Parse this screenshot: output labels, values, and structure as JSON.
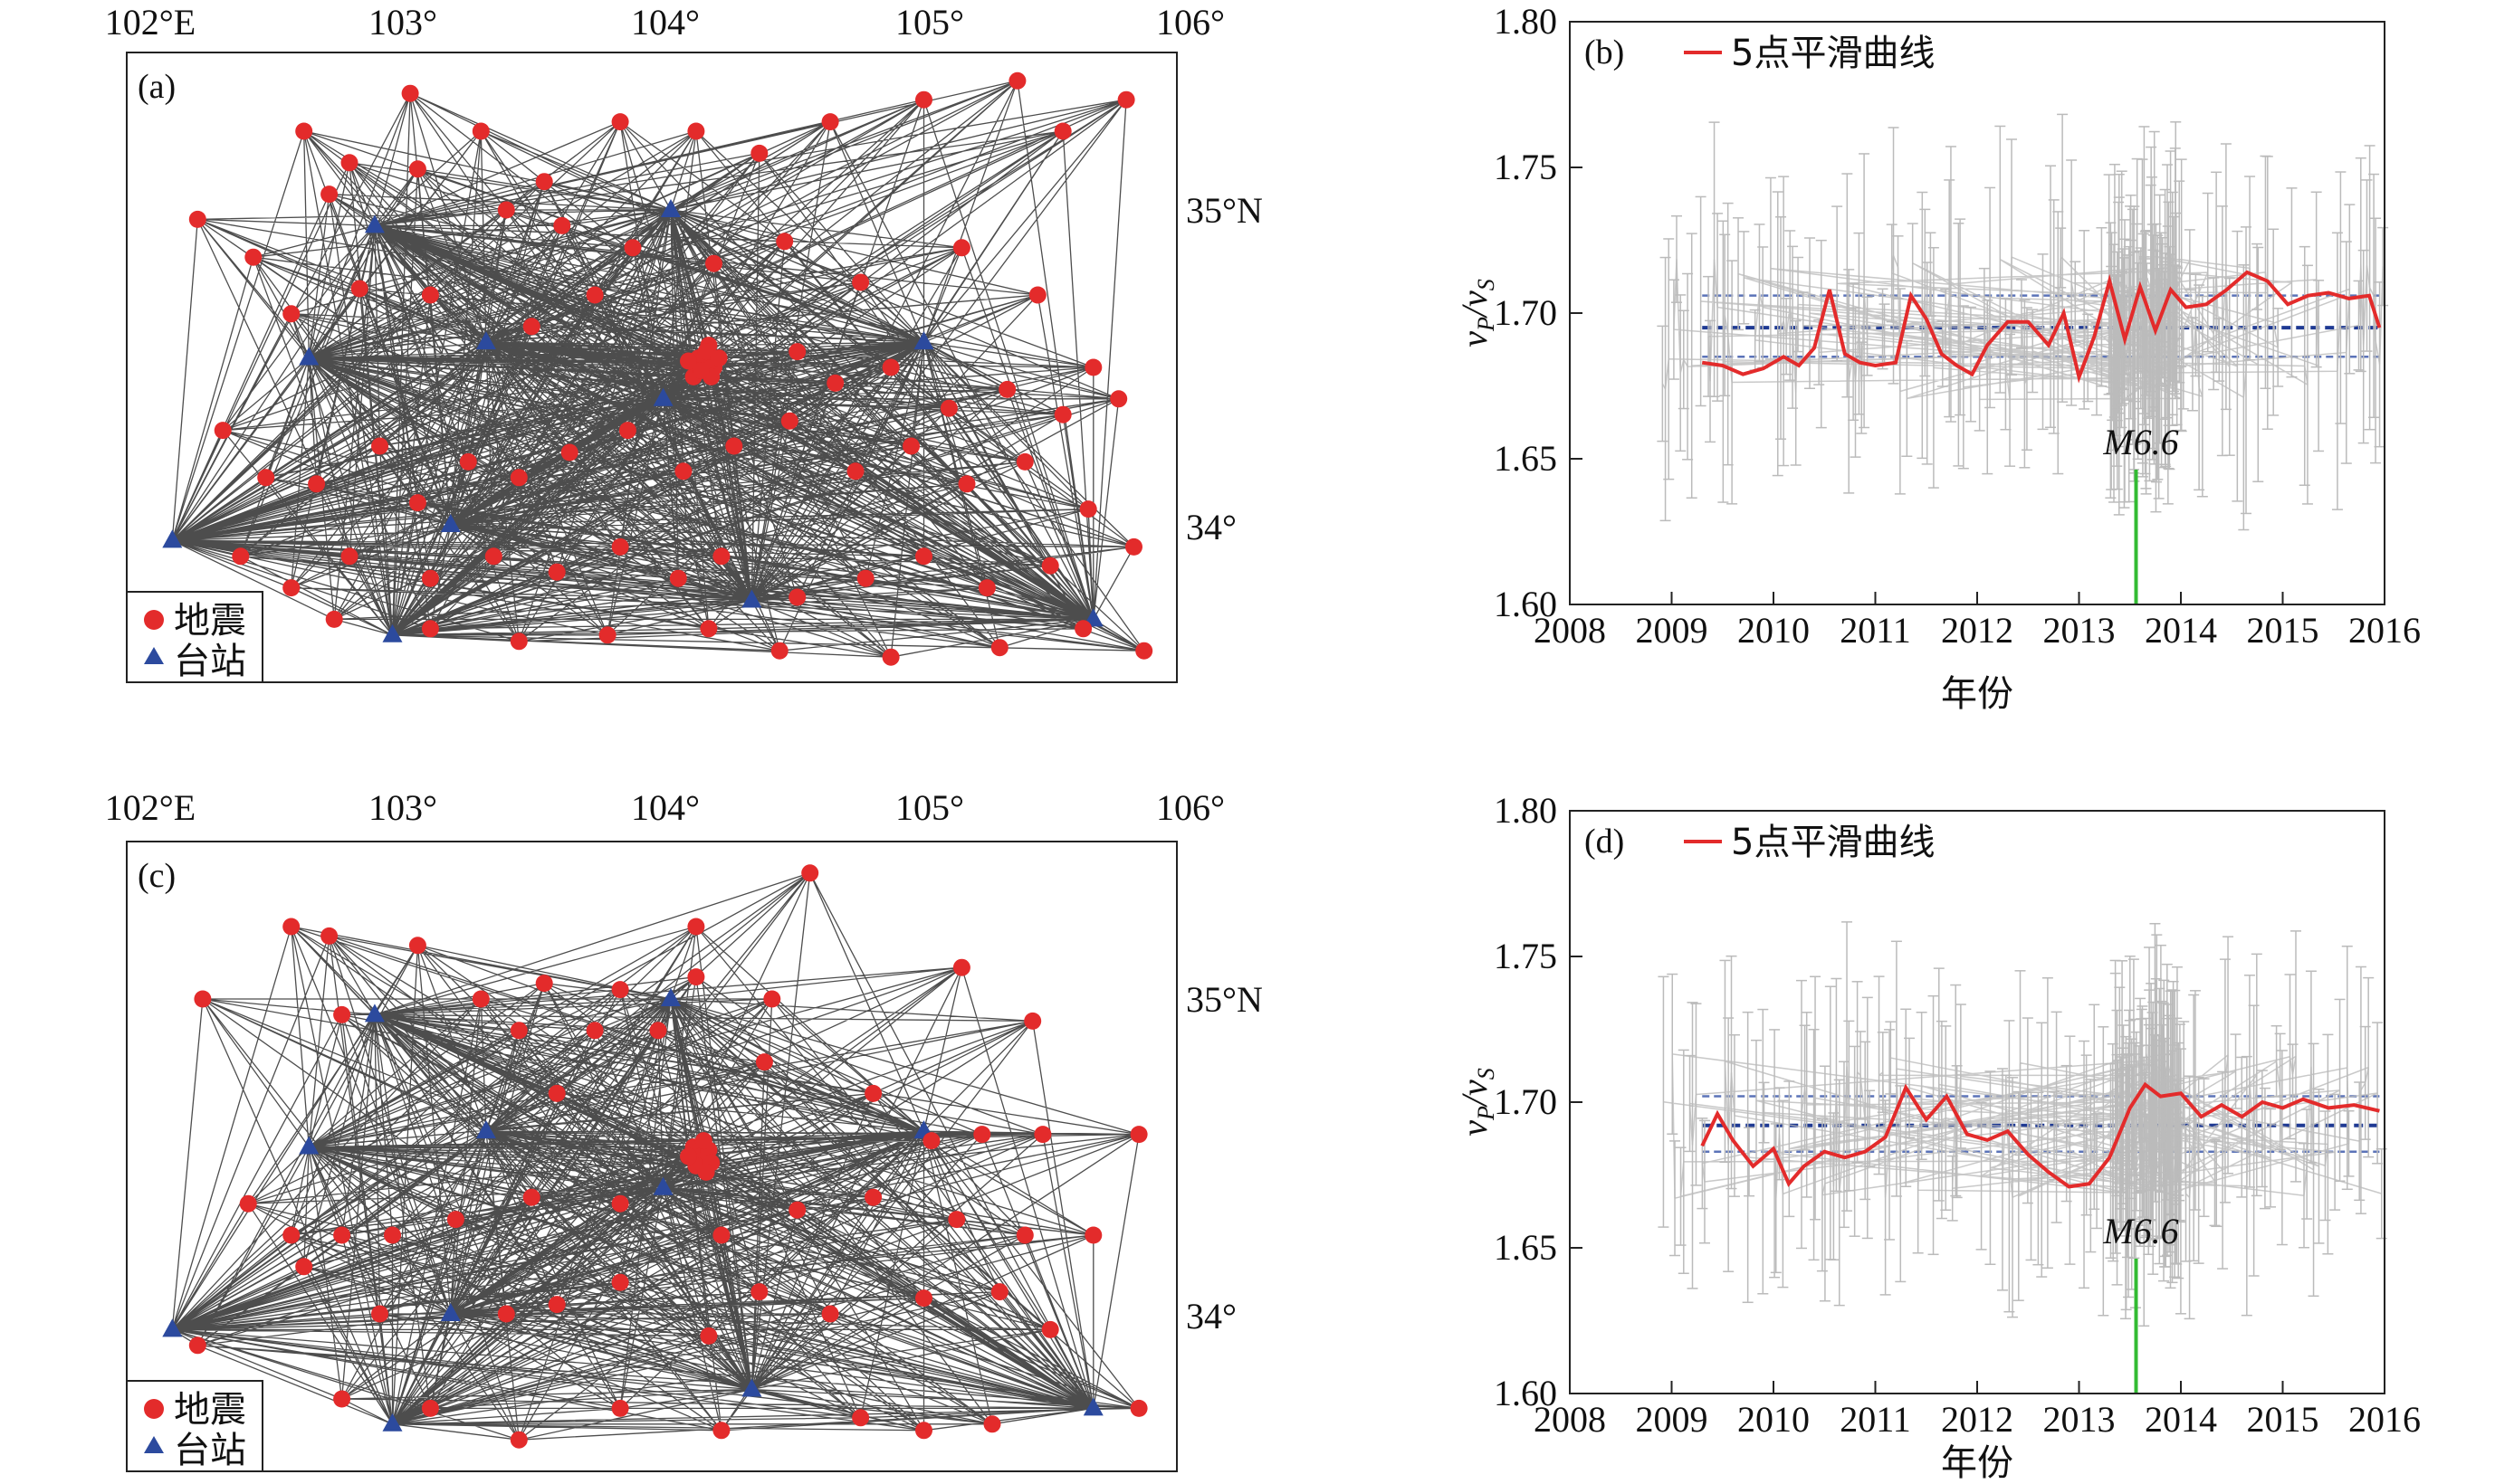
{
  "maps": [
    {
      "panel_label": "(a)",
      "lon_labels": [
        "102°E",
        "103°",
        "104°",
        "105°",
        "106°"
      ],
      "lat_labels": [
        "35°N",
        "34°"
      ],
      "legend": {
        "earthquake": "地震",
        "station": "台站"
      },
      "colors": {
        "earthquake": "#e32b2b",
        "station": "#2c4a9e",
        "path": "#111111"
      },
      "stations": [
        [
          102.08,
          34.0
        ],
        [
          102.62,
          34.58
        ],
        [
          102.88,
          35.0
        ],
        [
          102.95,
          33.7
        ],
        [
          103.18,
          34.05
        ],
        [
          103.32,
          34.63
        ],
        [
          104.02,
          34.45
        ],
        [
          104.05,
          35.05
        ],
        [
          104.37,
          33.81
        ],
        [
          105.05,
          34.63
        ],
        [
          105.72,
          33.75
        ]
      ],
      "quakes": [
        [
          102.18,
          35.02
        ],
        [
          103.02,
          35.42
        ],
        [
          103.3,
          35.3
        ],
        [
          103.55,
          35.14
        ],
        [
          103.85,
          35.33
        ],
        [
          104.15,
          35.3
        ],
        [
          104.4,
          35.23
        ],
        [
          104.68,
          35.33
        ],
        [
          105.05,
          35.4
        ],
        [
          105.42,
          35.46
        ],
        [
          105.6,
          35.3
        ],
        [
          105.85,
          35.4
        ],
        [
          102.6,
          35.3
        ],
        [
          102.7,
          35.1
        ],
        [
          102.78,
          35.2
        ],
        [
          103.05,
          35.18
        ],
        [
          103.4,
          35.05
        ],
        [
          103.62,
          35.0
        ],
        [
          103.9,
          34.93
        ],
        [
          104.22,
          34.88
        ],
        [
          104.5,
          34.95
        ],
        [
          104.8,
          34.82
        ],
        [
          105.2,
          34.93
        ],
        [
          105.5,
          34.78
        ],
        [
          105.72,
          34.55
        ],
        [
          102.4,
          34.9
        ],
        [
          102.55,
          34.72
        ],
        [
          102.82,
          34.8
        ],
        [
          103.1,
          34.78
        ],
        [
          103.5,
          34.68
        ],
        [
          103.75,
          34.78
        ],
        [
          104.2,
          34.62
        ],
        [
          104.18,
          34.56
        ],
        [
          104.16,
          34.58
        ],
        [
          104.22,
          34.55
        ],
        [
          104.14,
          34.52
        ],
        [
          104.19,
          34.6
        ],
        [
          104.12,
          34.57
        ],
        [
          104.24,
          34.58
        ],
        [
          104.21,
          34.52
        ],
        [
          104.17,
          34.54
        ],
        [
          104.55,
          34.6
        ],
        [
          104.7,
          34.5
        ],
        [
          104.92,
          34.55
        ],
        [
          105.15,
          34.42
        ],
        [
          105.38,
          34.48
        ],
        [
          105.6,
          34.4
        ],
        [
          105.82,
          34.45
        ],
        [
          102.28,
          34.35
        ],
        [
          102.45,
          34.2
        ],
        [
          102.65,
          34.18
        ],
        [
          102.9,
          34.3
        ],
        [
          103.05,
          34.12
        ],
        [
          103.25,
          34.25
        ],
        [
          103.45,
          34.2
        ],
        [
          103.65,
          34.28
        ],
        [
          103.88,
          34.35
        ],
        [
          104.1,
          34.22
        ],
        [
          104.3,
          34.3
        ],
        [
          104.52,
          34.38
        ],
        [
          104.78,
          34.22
        ],
        [
          105.0,
          34.3
        ],
        [
          105.22,
          34.18
        ],
        [
          105.45,
          34.25
        ],
        [
          105.7,
          34.1
        ],
        [
          102.35,
          33.95
        ],
        [
          102.55,
          33.85
        ],
        [
          102.78,
          33.95
        ],
        [
          103.1,
          33.88
        ],
        [
          103.35,
          33.95
        ],
        [
          103.6,
          33.9
        ],
        [
          103.85,
          33.98
        ],
        [
          104.08,
          33.88
        ],
        [
          104.25,
          33.95
        ],
        [
          104.55,
          33.82
        ],
        [
          104.82,
          33.88
        ],
        [
          105.05,
          33.95
        ],
        [
          105.3,
          33.85
        ],
        [
          105.55,
          33.92
        ],
        [
          105.88,
          33.98
        ],
        [
          102.72,
          33.75
        ],
        [
          103.1,
          33.72
        ],
        [
          103.45,
          33.68
        ],
        [
          103.8,
          33.7
        ],
        [
          104.2,
          33.72
        ],
        [
          104.48,
          33.65
        ],
        [
          104.92,
          33.63
        ],
        [
          105.35,
          33.66
        ],
        [
          105.68,
          33.72
        ],
        [
          105.92,
          33.65
        ]
      ]
    },
    {
      "panel_label": "(c)",
      "lon_labels": [
        "102°E",
        "103°",
        "104°",
        "105°",
        "106°"
      ],
      "lat_labels": [
        "35°N",
        "34°"
      ],
      "legend": {
        "earthquake": "地震",
        "station": "台站"
      },
      "colors": {
        "earthquake": "#e32b2b",
        "station": "#2c4a9e",
        "path": "#111111"
      },
      "stations": [
        [
          102.08,
          34.0
        ],
        [
          102.62,
          34.58
        ],
        [
          102.88,
          35.0
        ],
        [
          102.95,
          33.7
        ],
        [
          103.18,
          34.05
        ],
        [
          103.32,
          34.63
        ],
        [
          104.02,
          34.45
        ],
        [
          104.05,
          35.05
        ],
        [
          104.37,
          33.81
        ],
        [
          105.05,
          34.63
        ],
        [
          105.72,
          33.75
        ]
      ],
      "quakes": [
        [
          102.2,
          35.05
        ],
        [
          102.55,
          35.28
        ],
        [
          102.7,
          35.25
        ],
        [
          103.05,
          35.22
        ],
        [
          103.3,
          35.05
        ],
        [
          103.55,
          35.1
        ],
        [
          103.85,
          35.08
        ],
        [
          104.15,
          35.12
        ],
        [
          104.15,
          35.28
        ],
        [
          104.45,
          35.05
        ],
        [
          104.6,
          35.45
        ],
        [
          105.2,
          35.15
        ],
        [
          105.48,
          34.98
        ],
        [
          102.75,
          35.0
        ],
        [
          103.45,
          34.95
        ],
        [
          103.75,
          34.95
        ],
        [
          104.0,
          34.95
        ],
        [
          104.42,
          34.85
        ],
        [
          103.6,
          34.75
        ],
        [
          104.85,
          34.75
        ],
        [
          105.08,
          34.6
        ],
        [
          105.28,
          34.62
        ],
        [
          105.52,
          34.62
        ],
        [
          105.9,
          34.62
        ],
        [
          104.14,
          34.58
        ],
        [
          104.17,
          34.55
        ],
        [
          104.2,
          34.57
        ],
        [
          104.15,
          34.52
        ],
        [
          104.18,
          34.6
        ],
        [
          104.21,
          34.53
        ],
        [
          104.12,
          34.55
        ],
        [
          104.19,
          34.5
        ],
        [
          102.38,
          34.4
        ],
        [
          102.55,
          34.3
        ],
        [
          102.75,
          34.3
        ],
        [
          102.95,
          34.3
        ],
        [
          103.2,
          34.35
        ],
        [
          103.5,
          34.42
        ],
        [
          103.85,
          34.4
        ],
        [
          104.25,
          34.3
        ],
        [
          104.55,
          34.38
        ],
        [
          104.85,
          34.42
        ],
        [
          105.18,
          34.35
        ],
        [
          105.45,
          34.3
        ],
        [
          105.72,
          34.3
        ],
        [
          102.18,
          33.95
        ],
        [
          102.6,
          34.2
        ],
        [
          102.9,
          34.05
        ],
        [
          103.4,
          34.05
        ],
        [
          103.6,
          34.08
        ],
        [
          103.85,
          34.15
        ],
        [
          104.2,
          33.98
        ],
        [
          104.4,
          34.12
        ],
        [
          104.68,
          34.05
        ],
        [
          105.05,
          34.1
        ],
        [
          105.35,
          34.12
        ],
        [
          105.55,
          34.0
        ],
        [
          105.9,
          33.75
        ],
        [
          102.75,
          33.78
        ],
        [
          103.1,
          33.75
        ],
        [
          103.45,
          33.65
        ],
        [
          103.85,
          33.75
        ],
        [
          104.25,
          33.68
        ],
        [
          104.8,
          33.72
        ],
        [
          105.05,
          33.68
        ],
        [
          105.32,
          33.7
        ]
      ]
    }
  ],
  "series_charts": [
    {
      "panel_label": "(b)",
      "legend_label": "5点平滑曲线",
      "annotation": "M6.6",
      "xlabel": "年份",
      "ylabel": "vP/vS",
      "x_ticks": [
        "2008",
        "2009",
        "2010",
        "2011",
        "2012",
        "2013",
        "2014",
        "2015",
        "2016"
      ],
      "y_ticks": [
        "1.80",
        "1.75",
        "1.70",
        "1.65",
        "1.60"
      ],
      "colors": {
        "smooth": "#e32b2b",
        "raw": "#bbbbbb",
        "mean": "#1f3a93",
        "event": "#33bb33"
      }
    },
    {
      "panel_label": "(d)",
      "legend_label": "5点平滑曲线",
      "annotation": "M6.6",
      "xlabel": "年份",
      "ylabel": "vP/vS",
      "x_ticks": [
        "2008",
        "2009",
        "2010",
        "2011",
        "2012",
        "2013",
        "2014",
        "2015",
        "2016"
      ],
      "y_ticks": [
        "1.80",
        "1.75",
        "1.70",
        "1.65",
        "1.60"
      ],
      "colors": {
        "smooth": "#e32b2b",
        "raw": "#bbbbbb",
        "mean": "#1f3a93",
        "event": "#33bb33"
      }
    }
  ],
  "chart_data": [
    {
      "type": "line",
      "title": "",
      "xlabel": "年份",
      "ylabel": "vP/vS",
      "xlim": [
        2008,
        2016
      ],
      "ylim": [
        1.6,
        1.8
      ],
      "event": {
        "x": 2013.56,
        "label": "M6.6"
      },
      "mean": 1.695,
      "band": [
        1.685,
        1.706
      ],
      "series": [
        {
          "name": "5点平滑曲线",
          "x": [
            2009.3,
            2009.5,
            2009.7,
            2009.9,
            2010.1,
            2010.25,
            2010.4,
            2010.55,
            2010.7,
            2010.85,
            2011.0,
            2011.2,
            2011.35,
            2011.5,
            2011.65,
            2011.8,
            2011.95,
            2012.1,
            2012.3,
            2012.5,
            2012.7,
            2012.85,
            2013.0,
            2013.15,
            2013.3,
            2013.45,
            2013.6,
            2013.75,
            2013.9,
            2014.05,
            2014.25,
            2014.45,
            2014.65,
            2014.85,
            2015.05,
            2015.25,
            2015.45,
            2015.65,
            2015.85,
            2015.95
          ],
          "y": [
            1.683,
            1.682,
            1.679,
            1.681,
            1.685,
            1.682,
            1.688,
            1.708,
            1.686,
            1.683,
            1.682,
            1.683,
            1.706,
            1.698,
            1.686,
            1.682,
            1.679,
            1.689,
            1.697,
            1.697,
            1.689,
            1.7,
            1.678,
            1.692,
            1.711,
            1.691,
            1.709,
            1.694,
            1.708,
            1.702,
            1.703,
            1.708,
            1.714,
            1.711,
            1.703,
            1.706,
            1.707,
            1.705,
            1.706,
            1.695
          ]
        }
      ]
    },
    {
      "type": "line",
      "title": "",
      "xlabel": "年份",
      "ylabel": "vP/vS",
      "xlim": [
        2008,
        2016
      ],
      "ylim": [
        1.6,
        1.8
      ],
      "event": {
        "x": 2013.56,
        "label": "M6.6"
      },
      "mean": 1.692,
      "band": [
        1.683,
        1.702
      ],
      "series": [
        {
          "name": "5点平滑曲线",
          "x": [
            2009.3,
            2009.45,
            2009.6,
            2009.8,
            2010.0,
            2010.15,
            2010.3,
            2010.5,
            2010.7,
            2010.9,
            2011.1,
            2011.3,
            2011.5,
            2011.7,
            2011.9,
            2012.1,
            2012.3,
            2012.5,
            2012.7,
            2012.9,
            2013.1,
            2013.3,
            2013.5,
            2013.65,
            2013.8,
            2014.0,
            2014.2,
            2014.4,
            2014.6,
            2014.8,
            2015.0,
            2015.2,
            2015.45,
            2015.7,
            2015.95
          ],
          "y": [
            1.685,
            1.696,
            1.687,
            1.678,
            1.684,
            1.672,
            1.678,
            1.683,
            1.681,
            1.683,
            1.688,
            1.705,
            1.694,
            1.702,
            1.689,
            1.687,
            1.69,
            1.682,
            1.676,
            1.671,
            1.672,
            1.681,
            1.698,
            1.706,
            1.702,
            1.703,
            1.695,
            1.699,
            1.695,
            1.7,
            1.698,
            1.701,
            1.698,
            1.699,
            1.697
          ]
        }
      ]
    }
  ]
}
